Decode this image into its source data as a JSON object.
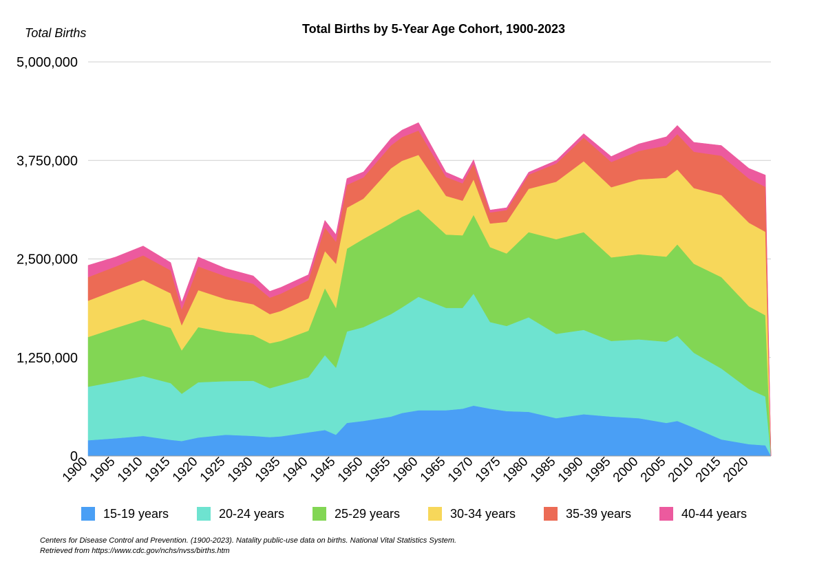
{
  "chart_data": {
    "type": "area",
    "stacked": true,
    "title": "Total Births by 5-Year Age Cohort, 1900-2023",
    "ylabel": "Total Births",
    "xlabel": "",
    "ylim": [
      0,
      5000000
    ],
    "yticks": [
      0,
      1250000,
      2500000,
      3750000,
      5000000
    ],
    "ytick_labels": [
      "0",
      "1,250,000",
      "2,500,000",
      "3,750,000",
      "5,000,000"
    ],
    "xlim": [
      1900,
      2024
    ],
    "xticks": [
      1900,
      1905,
      1910,
      1915,
      1920,
      1925,
      1930,
      1935,
      1940,
      1945,
      1950,
      1955,
      1960,
      1965,
      1970,
      1975,
      1980,
      1985,
      1990,
      1995,
      2000,
      2005,
      2010,
      2015,
      2020
    ],
    "grid": "horizontal",
    "legend_position": "bottom",
    "x": [
      1900,
      1905,
      1910,
      1915,
      1917,
      1920,
      1925,
      1930,
      1933,
      1935,
      1940,
      1943,
      1945,
      1947,
      1950,
      1955,
      1957,
      1960,
      1965,
      1968,
      1970,
      1973,
      1976,
      1980,
      1985,
      1990,
      1995,
      2000,
      2005,
      2007,
      2010,
      2015,
      2020,
      2023,
      2024
    ],
    "series": [
      {
        "name": "15-19 years",
        "color": "#4a9ff5",
        "values": [
          200000,
          225000,
          255000,
          205000,
          190000,
          235000,
          270000,
          255000,
          240000,
          250000,
          300000,
          330000,
          270000,
          420000,
          445000,
          500000,
          545000,
          580000,
          580000,
          600000,
          640000,
          600000,
          570000,
          560000,
          480000,
          530000,
          500000,
          480000,
          420000,
          445000,
          360000,
          210000,
          150000,
          135000,
          0
        ]
      },
      {
        "name": "20-24 years",
        "color": "#6ee3d0",
        "values": [
          680000,
          720000,
          760000,
          720000,
          600000,
          700000,
          680000,
          700000,
          620000,
          650000,
          700000,
          950000,
          850000,
          1160000,
          1190000,
          1300000,
          1340000,
          1440000,
          1300000,
          1280000,
          1420000,
          1100000,
          1080000,
          1200000,
          1070000,
          1070000,
          960000,
          1000000,
          1030000,
          1080000,
          950000,
          900000,
          700000,
          620000,
          0
        ]
      },
      {
        "name": "25-29 years",
        "color": "#82d654",
        "values": [
          630000,
          680000,
          720000,
          700000,
          550000,
          700000,
          620000,
          580000,
          570000,
          560000,
          590000,
          850000,
          760000,
          1050000,
          1120000,
          1150000,
          1150000,
          1110000,
          930000,
          920000,
          1000000,
          950000,
          920000,
          1080000,
          1200000,
          1240000,
          1060000,
          1080000,
          1080000,
          1160000,
          1130000,
          1160000,
          1050000,
          1030000,
          0
        ]
      },
      {
        "name": "30-34 years",
        "color": "#f7d75a",
        "values": [
          460000,
          480000,
          500000,
          440000,
          320000,
          470000,
          420000,
          390000,
          370000,
          380000,
          410000,
          470000,
          560000,
          520000,
          510000,
          700000,
          710000,
          690000,
          490000,
          440000,
          450000,
          300000,
          400000,
          550000,
          730000,
          900000,
          890000,
          950000,
          1000000,
          950000,
          960000,
          1040000,
          1060000,
          1060000,
          0
        ]
      },
      {
        "name": "35-39 years",
        "color": "#ec6b55",
        "values": [
          300000,
          300000,
          310000,
          290000,
          200000,
          300000,
          290000,
          260000,
          210000,
          220000,
          230000,
          300000,
          280000,
          290000,
          270000,
          290000,
          300000,
          310000,
          240000,
          220000,
          200000,
          140000,
          150000,
          180000,
          230000,
          300000,
          320000,
          360000,
          410000,
          450000,
          460000,
          500000,
          560000,
          570000,
          0
        ]
      },
      {
        "name": "40-44 years",
        "color": "#ec5a9e",
        "values": [
          150000,
          120000,
          120000,
          100000,
          90000,
          120000,
          100000,
          100000,
          80000,
          80000,
          70000,
          90000,
          90000,
          80000,
          70000,
          90000,
          90000,
          100000,
          60000,
          50000,
          50000,
          30000,
          30000,
          30000,
          40000,
          50000,
          70000,
          90000,
          110000,
          110000,
          120000,
          130000,
          130000,
          150000,
          0
        ]
      }
    ]
  },
  "source_note": {
    "line1": "Centers for Disease Control and Prevention. (1900-2023). Natality public-use data on births. National Vital Statistics System.",
    "line2": "Retrieved from https://www.cdc.gov/nchs/nvss/births.htm"
  }
}
